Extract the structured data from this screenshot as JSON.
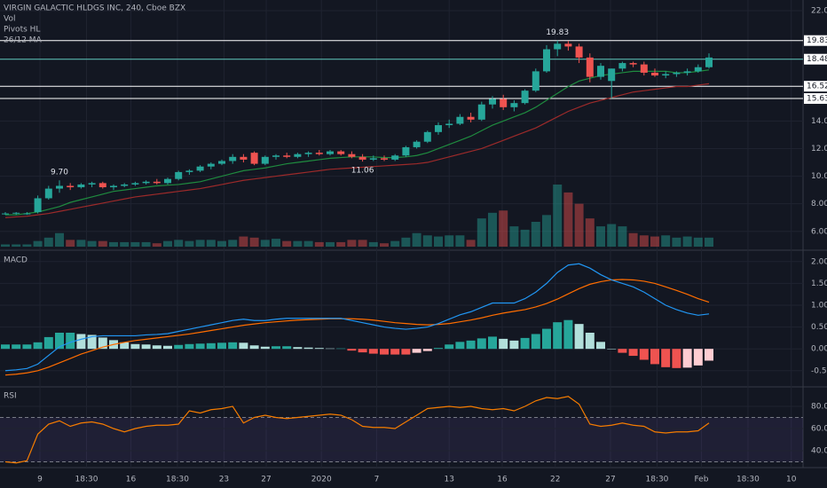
{
  "chart_data": [
    {
      "type": "candlestick",
      "title": "VIRGIN GALACTIC HLDGS INC, 240, Cboe BZX",
      "legend": [
        "Vol",
        "Pivots HL",
        "26/12 MA"
      ],
      "up_color": "#26a69a",
      "down_color": "#ef5350",
      "ohlc": [
        [
          7.3,
          7.4,
          7.2,
          7.3
        ],
        [
          7.3,
          7.4,
          7.2,
          7.35
        ],
        [
          7.3,
          7.4,
          7.2,
          7.3
        ],
        [
          7.4,
          8.6,
          7.3,
          8.4
        ],
        [
          8.4,
          9.3,
          8.3,
          9.1
        ],
        [
          9.1,
          9.7,
          8.8,
          9.3
        ],
        [
          9.3,
          9.5,
          9.0,
          9.2
        ],
        [
          9.2,
          9.5,
          9.1,
          9.4
        ],
        [
          9.4,
          9.6,
          9.2,
          9.5
        ],
        [
          9.5,
          9.6,
          9.1,
          9.2
        ],
        [
          9.2,
          9.4,
          9.0,
          9.3
        ],
        [
          9.3,
          9.5,
          9.2,
          9.4
        ],
        [
          9.4,
          9.6,
          9.3,
          9.5
        ],
        [
          9.5,
          9.7,
          9.4,
          9.6
        ],
        [
          9.6,
          9.8,
          9.4,
          9.5
        ],
        [
          9.5,
          9.9,
          9.4,
          9.8
        ],
        [
          9.8,
          10.4,
          9.7,
          10.3
        ],
        [
          10.3,
          10.5,
          10.1,
          10.4
        ],
        [
          10.4,
          10.8,
          10.3,
          10.7
        ],
        [
          10.7,
          11.0,
          10.5,
          10.9
        ],
        [
          10.9,
          11.2,
          10.8,
          11.1
        ],
        [
          11.1,
          11.6,
          10.9,
          11.4
        ],
        [
          11.4,
          11.6,
          11.0,
          11.2
        ],
        [
          11.7,
          11.8,
          10.8,
          10.9
        ],
        [
          10.9,
          11.5,
          10.8,
          11.4
        ],
        [
          11.4,
          11.6,
          11.2,
          11.5
        ],
        [
          11.5,
          11.7,
          11.3,
          11.4
        ],
        [
          11.4,
          11.7,
          11.3,
          11.6
        ],
        [
          11.6,
          11.8,
          11.4,
          11.7
        ],
        [
          11.7,
          11.9,
          11.5,
          11.6
        ],
        [
          11.6,
          11.9,
          11.5,
          11.8
        ],
        [
          11.8,
          11.9,
          11.5,
          11.6
        ],
        [
          11.6,
          11.8,
          11.3,
          11.4
        ],
        [
          11.4,
          11.6,
          11.06,
          11.2
        ],
        [
          11.2,
          11.5,
          11.1,
          11.3
        ],
        [
          11.3,
          11.5,
          11.1,
          11.2
        ],
        [
          11.2,
          11.6,
          11.1,
          11.5
        ],
        [
          11.5,
          12.2,
          11.4,
          12.1
        ],
        [
          12.1,
          12.6,
          12.0,
          12.5
        ],
        [
          12.5,
          13.3,
          12.4,
          13.2
        ],
        [
          13.2,
          13.9,
          13.0,
          13.7
        ],
        [
          13.7,
          14.1,
          13.5,
          13.8
        ],
        [
          13.8,
          14.5,
          13.7,
          14.3
        ],
        [
          14.3,
          14.6,
          13.9,
          14.1
        ],
        [
          14.1,
          15.4,
          14.0,
          15.2
        ],
        [
          15.2,
          15.8,
          14.9,
          15.6
        ],
        [
          15.6,
          15.9,
          14.8,
          15.0
        ],
        [
          15.0,
          15.5,
          14.7,
          15.3
        ],
        [
          15.3,
          16.3,
          15.2,
          16.2
        ],
        [
          16.2,
          17.8,
          16.1,
          17.6
        ],
        [
          17.6,
          19.5,
          17.5,
          19.2
        ],
        [
          19.2,
          19.83,
          18.7,
          19.6
        ],
        [
          19.6,
          19.8,
          19.1,
          19.4
        ],
        [
          19.4,
          19.6,
          18.2,
          18.6
        ],
        [
          18.6,
          18.9,
          16.8,
          17.2
        ],
        [
          17.2,
          18.2,
          17.0,
          18.0
        ],
        [
          16.9,
          17.8,
          15.63,
          17.8
        ],
        [
          17.8,
          18.3,
          17.6,
          18.2
        ],
        [
          18.2,
          18.3,
          17.9,
          18.1
        ],
        [
          18.1,
          18.3,
          17.3,
          17.5
        ],
        [
          17.5,
          17.8,
          17.2,
          17.3
        ],
        [
          17.3,
          17.6,
          17.1,
          17.4
        ],
        [
          17.4,
          17.6,
          17.2,
          17.5
        ],
        [
          17.5,
          17.8,
          17.3,
          17.6
        ],
        [
          17.6,
          18.1,
          17.5,
          17.9
        ],
        [
          17.9,
          18.9,
          17.8,
          18.6
        ]
      ],
      "volume": [
        2,
        2,
        2,
        5,
        8,
        12,
        6,
        6,
        5,
        5,
        4,
        4,
        4,
        4,
        3,
        5,
        6,
        5,
        6,
        6,
        5,
        6,
        9,
        8,
        6,
        7,
        5,
        5,
        5,
        4,
        4,
        4,
        6,
        6,
        4,
        3,
        5,
        8,
        12,
        10,
        9,
        10,
        10,
        6,
        25,
        30,
        32,
        18,
        15,
        22,
        28,
        55,
        48,
        38,
        25,
        18,
        20,
        18,
        12,
        10,
        9,
        10,
        8,
        9,
        8,
        8
      ],
      "ma_fast": {
        "color": "#1f8b3f",
        "values": [
          7.2,
          7.2,
          7.3,
          7.4,
          7.6,
          7.8,
          8.1,
          8.3,
          8.5,
          8.7,
          8.9,
          9.0,
          9.1,
          9.2,
          9.3,
          9.35,
          9.4,
          9.5,
          9.6,
          9.8,
          10.0,
          10.2,
          10.4,
          10.5,
          10.6,
          10.75,
          10.9,
          11.0,
          11.1,
          11.2,
          11.3,
          11.35,
          11.4,
          11.4,
          11.4,
          11.35,
          11.35,
          11.4,
          11.5,
          11.7,
          12.0,
          12.3,
          12.6,
          12.9,
          13.3,
          13.7,
          14.0,
          14.3,
          14.6,
          15.0,
          15.5,
          16.0,
          16.5,
          16.9,
          17.1,
          17.3,
          17.4,
          17.5,
          17.6,
          17.6,
          17.6,
          17.6,
          17.5,
          17.5,
          17.6,
          17.7
        ]
      },
      "ma_slow": {
        "color": "#9c2a2a",
        "values": [
          7.0,
          7.05,
          7.1,
          7.2,
          7.3,
          7.45,
          7.6,
          7.75,
          7.9,
          8.05,
          8.2,
          8.35,
          8.5,
          8.6,
          8.7,
          8.8,
          8.9,
          9.0,
          9.1,
          9.25,
          9.4,
          9.55,
          9.7,
          9.8,
          9.9,
          10.0,
          10.1,
          10.2,
          10.3,
          10.4,
          10.5,
          10.55,
          10.6,
          10.65,
          10.7,
          10.75,
          10.8,
          10.85,
          10.9,
          11.0,
          11.2,
          11.4,
          11.6,
          11.8,
          12.0,
          12.3,
          12.6,
          12.9,
          13.2,
          13.5,
          13.9,
          14.3,
          14.7,
          15.0,
          15.3,
          15.5,
          15.7,
          15.9,
          16.1,
          16.2,
          16.3,
          16.4,
          16.5,
          16.5,
          16.6,
          16.7
        ]
      },
      "pivots": [
        {
          "value": 19.83,
          "color": "#ffffff"
        },
        {
          "value": 18.48,
          "color": "#5fc9bd"
        },
        {
          "value": 16.52,
          "color": "#ffffff"
        },
        {
          "value": 15.63,
          "color": "#ffffff"
        }
      ],
      "annotations": [
        {
          "index": 5,
          "side": "above",
          "value": {
            "value": 9.7,
            "label": "9.70"
          }
        },
        {
          "index": 33,
          "side": "below",
          "value": 11.06
        },
        {
          "index": 51,
          "side": "above",
          "value": 19.83
        }
      ],
      "ylim": [
        4.7,
        22.77
      ],
      "yticks": [
        {
          "value": 6,
          "label": "6.00"
        },
        {
          "value": 8,
          "label": "8.00"
        },
        {
          "value": 10,
          "label": "10.00"
        },
        {
          "value": 12,
          "label": "12.00"
        },
        {
          "value": 14,
          "label": "14.00"
        },
        {
          "value": 22,
          "label": "22.00"
        }
      ]
    },
    {
      "type": "macd",
      "label": "MACD",
      "macd": {
        "color": "#2196f3",
        "values": [
          -0.5,
          -0.48,
          -0.45,
          -0.35,
          -0.15,
          0.05,
          0.15,
          0.22,
          0.28,
          0.3,
          0.3,
          0.3,
          0.3,
          0.32,
          0.33,
          0.35,
          0.4,
          0.45,
          0.5,
          0.55,
          0.6,
          0.65,
          0.68,
          0.65,
          0.65,
          0.68,
          0.7,
          0.7,
          0.7,
          0.7,
          0.7,
          0.7,
          0.65,
          0.6,
          0.55,
          0.5,
          0.47,
          0.45,
          0.47,
          0.5,
          0.58,
          0.68,
          0.78,
          0.85,
          0.95,
          1.05,
          1.05,
          1.05,
          1.15,
          1.3,
          1.5,
          1.75,
          1.92,
          1.95,
          1.85,
          1.7,
          1.58,
          1.5,
          1.42,
          1.3,
          1.15,
          1.0,
          0.9,
          0.82,
          0.77,
          0.8
        ]
      },
      "signal": {
        "color": "#ff6d00",
        "values": [
          -0.6,
          -0.58,
          -0.55,
          -0.5,
          -0.42,
          -0.32,
          -0.22,
          -0.12,
          -0.04,
          0.04,
          0.1,
          0.15,
          0.19,
          0.22,
          0.25,
          0.28,
          0.31,
          0.34,
          0.38,
          0.42,
          0.46,
          0.5,
          0.54,
          0.57,
          0.6,
          0.62,
          0.64,
          0.66,
          0.67,
          0.68,
          0.69,
          0.69,
          0.69,
          0.68,
          0.66,
          0.63,
          0.6,
          0.58,
          0.56,
          0.55,
          0.56,
          0.58,
          0.62,
          0.66,
          0.71,
          0.77,
          0.82,
          0.86,
          0.9,
          0.96,
          1.04,
          1.14,
          1.26,
          1.38,
          1.48,
          1.54,
          1.58,
          1.59,
          1.58,
          1.55,
          1.5,
          1.42,
          1.34,
          1.25,
          1.15,
          1.07
        ]
      },
      "histogram": {
        "colors": {
          "up_rising": "#26a69a",
          "up_falling": "#b2dfdb",
          "down_falling": "#ef5350",
          "down_rising": "#ffcdd2"
        },
        "values": [
          0.1,
          0.1,
          0.1,
          0.15,
          0.27,
          0.37,
          0.37,
          0.34,
          0.32,
          0.26,
          0.2,
          0.15,
          0.11,
          0.1,
          0.08,
          0.07,
          0.09,
          0.11,
          0.12,
          0.13,
          0.14,
          0.15,
          0.14,
          0.08,
          0.05,
          0.06,
          0.06,
          0.04,
          0.03,
          0.02,
          0.01,
          0.01,
          -0.04,
          -0.08,
          -0.11,
          -0.13,
          -0.13,
          -0.13,
          -0.09,
          -0.05,
          0.02,
          0.1,
          0.16,
          0.19,
          0.24,
          0.28,
          0.23,
          0.19,
          0.25,
          0.34,
          0.46,
          0.61,
          0.66,
          0.57,
          0.37,
          0.16,
          0.0,
          -0.09,
          -0.16,
          -0.25,
          -0.35,
          -0.42,
          -0.44,
          -0.43,
          -0.38,
          -0.27
        ]
      },
      "ylim": [
        -0.85,
        2.24
      ],
      "yticks": [
        {
          "value": 2,
          "label": "2.00"
        },
        {
          "value": 1.5,
          "label": "1.50"
        },
        {
          "value": 1,
          "label": "1.00"
        },
        {
          "value": 0.5,
          "label": "0.50"
        },
        {
          "value": 0,
          "label": "0.00"
        },
        {
          "value": -0.5,
          "label": "-0.50"
        }
      ]
    },
    {
      "type": "rsi",
      "label": "RSI",
      "color": "#f57c00",
      "values": [
        30,
        29,
        31,
        55,
        64,
        67,
        62,
        65,
        66,
        64,
        60,
        57,
        60,
        62,
        63,
        63,
        64,
        76,
        74,
        77,
        78,
        80,
        65,
        70,
        72,
        70,
        69,
        70,
        71,
        72,
        73,
        72,
        68,
        62,
        61,
        61,
        60,
        66,
        72,
        78,
        79,
        80,
        79,
        80,
        78,
        77,
        78,
        76,
        80,
        85,
        88,
        87,
        89,
        82,
        64,
        62,
        63,
        65,
        63,
        62,
        57,
        56,
        57,
        57,
        58,
        65
      ],
      "bands": [
        70,
        30
      ],
      "band_fill": "#7e57c2",
      "ylim": [
        24.8,
        96.8
      ],
      "yticks": [
        {
          "value": 80,
          "label": "80.00"
        },
        {
          "value": 60,
          "label": "60.00"
        },
        {
          "value": 40,
          "label": "40.00"
        }
      ],
      "xticks": [
        {
          "value": 3.2,
          "label": "9"
        },
        {
          "value": 7.5,
          "label": "18:30"
        },
        {
          "value": 11.6,
          "label": "16"
        },
        {
          "value": 15.9,
          "label": "18:30"
        },
        {
          "value": 20.2,
          "label": "23"
        },
        {
          "value": 24.1,
          "label": "27"
        },
        {
          "value": 29.2,
          "label": "2020"
        },
        {
          "value": 34.3,
          "label": "7"
        },
        {
          "value": 41,
          "label": "13"
        },
        {
          "value": 45.9,
          "label": "16"
        },
        {
          "value": 50.8,
          "label": "22"
        },
        {
          "value": 55.9,
          "label": "27"
        },
        {
          "value": 60.2,
          "label": "18:30"
        },
        {
          "value": 64.3,
          "label": "Feb"
        },
        {
          "value": 68.6,
          "label": "18:30"
        },
        {
          "value": 72.6,
          "label": "10"
        }
      ]
    }
  ]
}
